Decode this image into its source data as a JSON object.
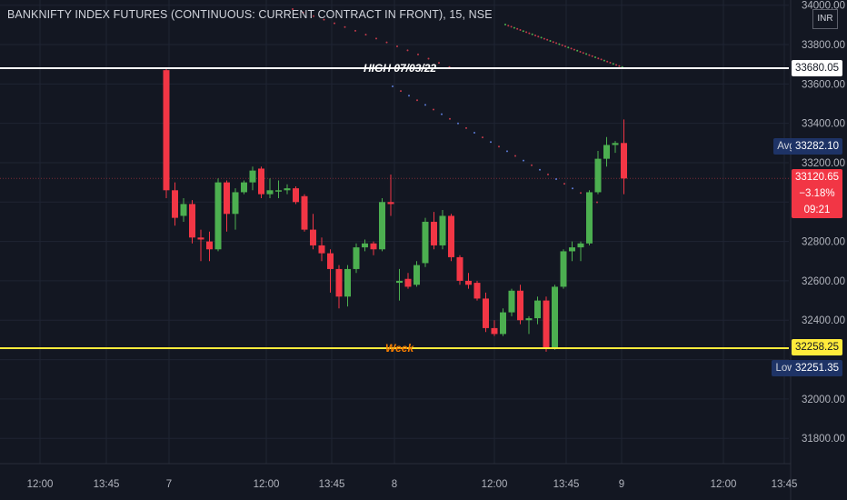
{
  "title": "BANKNIFTY INDEX FUTURES (CONTINUOUS: CURRENT CONTRACT IN FRONT), 15, NSE",
  "currency_button": "INR",
  "price_axis": {
    "ticks": [
      "34000.00",
      "33800.00",
      "33600.00",
      "33400.00",
      "33200.00",
      "32800.00",
      "32600.00",
      "32400.00",
      "32000.00",
      "31800.00"
    ]
  },
  "time_axis": {
    "ticks": [
      "12:00",
      "13:45",
      "7",
      "12:00",
      "13:45",
      "8",
      "12:00",
      "13:45",
      "9",
      "12:00",
      "13:45"
    ]
  },
  "levels": {
    "high": {
      "label": "HIGH 07/03/22",
      "price_tag": "33680.05",
      "color": "#ffffff"
    },
    "week": {
      "label": "Week",
      "price_tag": "32258.25",
      "color": "#ffeb3b",
      "label_color": "#f57c00"
    },
    "avg": {
      "label": "Avg",
      "price_tag": "33282.10"
    },
    "low": {
      "label": "Low",
      "price_tag": "32251.35"
    },
    "last": {
      "price": "33120.65",
      "change": "−3.18%",
      "countdown": "09:21"
    }
  },
  "colors": {
    "up": "#26a69a",
    "up_body": "#4caf50",
    "down": "#f23645",
    "background": "#131722",
    "grid": "#1f2433"
  },
  "chart_data": {
    "type": "candlestick",
    "title": "BANKNIFTY INDEX FUTURES (CONTINUOUS: CURRENT CONTRACT IN FRONT), 15, NSE",
    "ylim": [
      31600,
      34100
    ],
    "candles": [
      {
        "o": 33670,
        "h": 33680,
        "l": 33020,
        "c": 33060
      },
      {
        "o": 33060,
        "h": 33100,
        "l": 32880,
        "c": 32920
      },
      {
        "o": 32930,
        "h": 33020,
        "l": 32900,
        "c": 32990
      },
      {
        "o": 32990,
        "h": 33010,
        "l": 32790,
        "c": 32820
      },
      {
        "o": 32820,
        "h": 32860,
        "l": 32700,
        "c": 32810
      },
      {
        "o": 32800,
        "h": 32850,
        "l": 32700,
        "c": 32760
      },
      {
        "o": 32760,
        "h": 33120,
        "l": 32750,
        "c": 33100
      },
      {
        "o": 33100,
        "h": 33110,
        "l": 32850,
        "c": 32940
      },
      {
        "o": 32940,
        "h": 33070,
        "l": 32860,
        "c": 33050
      },
      {
        "o": 33050,
        "h": 33110,
        "l": 33040,
        "c": 33100
      },
      {
        "o": 33100,
        "h": 33180,
        "l": 33060,
        "c": 33160
      },
      {
        "o": 33170,
        "h": 33180,
        "l": 33020,
        "c": 33040
      },
      {
        "o": 33040,
        "h": 33120,
        "l": 33020,
        "c": 33060
      },
      {
        "o": 33055,
        "h": 33110,
        "l": 33020,
        "c": 33060
      },
      {
        "o": 33060,
        "h": 33090,
        "l": 33040,
        "c": 33070
      },
      {
        "o": 33070,
        "h": 33080,
        "l": 32990,
        "c": 33000
      },
      {
        "o": 33030,
        "h": 33040,
        "l": 32850,
        "c": 32860
      },
      {
        "o": 32860,
        "h": 32940,
        "l": 32760,
        "c": 32780
      },
      {
        "o": 32780,
        "h": 32820,
        "l": 32700,
        "c": 32740
      },
      {
        "o": 32740,
        "h": 32760,
        "l": 32540,
        "c": 32660
      },
      {
        "o": 32660,
        "h": 32680,
        "l": 32460,
        "c": 32520
      },
      {
        "o": 32520,
        "h": 32680,
        "l": 32470,
        "c": 32660
      },
      {
        "o": 32660,
        "h": 32790,
        "l": 32640,
        "c": 32770
      },
      {
        "o": 32770,
        "h": 32810,
        "l": 32750,
        "c": 32790
      },
      {
        "o": 32790,
        "h": 32800,
        "l": 32730,
        "c": 32760
      },
      {
        "o": 32760,
        "h": 33020,
        "l": 32750,
        "c": 33000
      },
      {
        "o": 33000,
        "h": 33140,
        "l": 32930,
        "c": 32990
      },
      {
        "o": 32590,
        "h": 32660,
        "l": 32500,
        "c": 32600
      },
      {
        "o": 32610,
        "h": 32640,
        "l": 32560,
        "c": 32570
      },
      {
        "o": 32580,
        "h": 32700,
        "l": 32570,
        "c": 32680
      },
      {
        "o": 32690,
        "h": 32920,
        "l": 32670,
        "c": 32900
      },
      {
        "o": 32900,
        "h": 32950,
        "l": 32760,
        "c": 32780
      },
      {
        "o": 32780,
        "h": 32960,
        "l": 32760,
        "c": 32930
      },
      {
        "o": 32930,
        "h": 32940,
        "l": 32700,
        "c": 32720
      },
      {
        "o": 32720,
        "h": 32730,
        "l": 32580,
        "c": 32600
      },
      {
        "o": 32600,
        "h": 32640,
        "l": 32560,
        "c": 32580
      },
      {
        "o": 32590,
        "h": 32600,
        "l": 32500,
        "c": 32510
      },
      {
        "o": 32510,
        "h": 32540,
        "l": 32340,
        "c": 32360
      },
      {
        "o": 32360,
        "h": 32400,
        "l": 32320,
        "c": 32330
      },
      {
        "o": 32330,
        "h": 32460,
        "l": 32320,
        "c": 32440
      },
      {
        "o": 32440,
        "h": 32560,
        "l": 32420,
        "c": 32550
      },
      {
        "o": 32550,
        "h": 32580,
        "l": 32380,
        "c": 32400
      },
      {
        "o": 32400,
        "h": 32420,
        "l": 32330,
        "c": 32410
      },
      {
        "o": 32410,
        "h": 32520,
        "l": 32380,
        "c": 32500
      },
      {
        "o": 32500,
        "h": 32520,
        "l": 32240,
        "c": 32260
      },
      {
        "o": 32260,
        "h": 32580,
        "l": 32250,
        "c": 32570
      },
      {
        "o": 32570,
        "h": 32760,
        "l": 32560,
        "c": 32750
      },
      {
        "o": 32750,
        "h": 32800,
        "l": 32700,
        "c": 32770
      },
      {
        "o": 32770,
        "h": 32800,
        "l": 32700,
        "c": 32790
      },
      {
        "o": 32790,
        "h": 33060,
        "l": 32780,
        "c": 33050
      },
      {
        "o": 33050,
        "h": 33260,
        "l": 33040,
        "c": 33220
      },
      {
        "o": 33220,
        "h": 33330,
        "l": 33180,
        "c": 33290
      },
      {
        "o": 33290,
        "h": 33310,
        "l": 33250,
        "c": 33300
      },
      {
        "o": 33300,
        "h": 33420,
        "l": 33040,
        "c": 33120
      }
    ],
    "levels": [
      {
        "name": "HIGH 07/03/22",
        "value": 33680.05
      },
      {
        "name": "Week",
        "value": 32258.25
      },
      {
        "name": "Avg",
        "value": 33282.1
      },
      {
        "name": "Low",
        "value": 32251.35
      }
    ]
  }
}
